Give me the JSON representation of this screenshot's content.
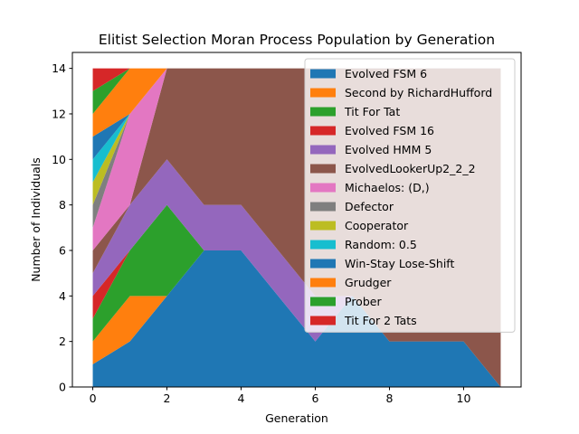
{
  "chart_data": {
    "type": "area",
    "stacked": true,
    "title": "Elitist Selection Moran Process Population by Generation",
    "xlabel": "Generation",
    "ylabel": "Number of Individuals",
    "xlim": [
      -0.55,
      11.55
    ],
    "ylim": [
      0,
      14.7
    ],
    "xticks": [
      0,
      2,
      4,
      6,
      8,
      10
    ],
    "yticks": [
      0,
      2,
      4,
      6,
      8,
      10,
      12,
      14
    ],
    "grid": false,
    "legend_position": "upper-right",
    "x": [
      0,
      1,
      2,
      3,
      4,
      5,
      6,
      7,
      8,
      9,
      10,
      11
    ],
    "series": [
      {
        "name": "Evolved FSM 6",
        "color": "#1f77b4",
        "values": [
          1,
          2,
          4,
          6,
          6,
          4,
          2,
          4,
          2,
          2,
          2,
          0
        ]
      },
      {
        "name": "Second by RichardHufford",
        "color": "#ff7f0e",
        "values": [
          1,
          2,
          0,
          0,
          0,
          0,
          0,
          0,
          0,
          0,
          0,
          0
        ]
      },
      {
        "name": "Tit For Tat",
        "color": "#2ca02c",
        "values": [
          1,
          2,
          4,
          0,
          0,
          0,
          0,
          0,
          0,
          0,
          0,
          0
        ]
      },
      {
        "name": "Evolved FSM 16",
        "color": "#d62728",
        "values": [
          1,
          0,
          0,
          0,
          0,
          0,
          0,
          0,
          0,
          0,
          0,
          0
        ]
      },
      {
        "name": "Evolved HMM 5",
        "color": "#9467bd",
        "values": [
          1,
          2,
          2,
          2,
          2,
          2,
          2,
          0,
          0,
          0,
          0,
          0
        ]
      },
      {
        "name": "EvolvedLookerUp2_2_2",
        "color": "#8c564b",
        "values": [
          1,
          0,
          4,
          6,
          6,
          8,
          10,
          10,
          12,
          12,
          12,
          14
        ]
      },
      {
        "name": "Michaelos: (D,)",
        "color": "#e377c2",
        "values": [
          1,
          4,
          0,
          0,
          0,
          0,
          0,
          0,
          0,
          0,
          0,
          0
        ]
      },
      {
        "name": "Defector",
        "color": "#7f7f7f",
        "values": [
          1,
          0,
          0,
          0,
          0,
          0,
          0,
          0,
          0,
          0,
          0,
          0
        ]
      },
      {
        "name": "Cooperator",
        "color": "#bcbd22",
        "values": [
          1,
          0,
          0,
          0,
          0,
          0,
          0,
          0,
          0,
          0,
          0,
          0
        ]
      },
      {
        "name": "Random: 0.5",
        "color": "#17becf",
        "values": [
          1,
          0,
          0,
          0,
          0,
          0,
          0,
          0,
          0,
          0,
          0,
          0
        ]
      },
      {
        "name": "Win-Stay Lose-Shift",
        "color": "#1f77b4",
        "values": [
          1,
          0,
          0,
          0,
          0,
          0,
          0,
          0,
          0,
          0,
          0,
          0
        ]
      },
      {
        "name": "Grudger",
        "color": "#ff7f0e",
        "values": [
          1,
          2,
          0,
          0,
          0,
          0,
          0,
          0,
          0,
          0,
          0,
          0
        ]
      },
      {
        "name": "Prober",
        "color": "#2ca02c",
        "values": [
          1,
          0,
          0,
          0,
          0,
          0,
          0,
          0,
          0,
          0,
          0,
          0
        ]
      },
      {
        "name": "Tit For 2 Tats",
        "color": "#d62728",
        "values": [
          1,
          0,
          0,
          0,
          0,
          0,
          0,
          0,
          0,
          0,
          0,
          0
        ]
      }
    ]
  }
}
